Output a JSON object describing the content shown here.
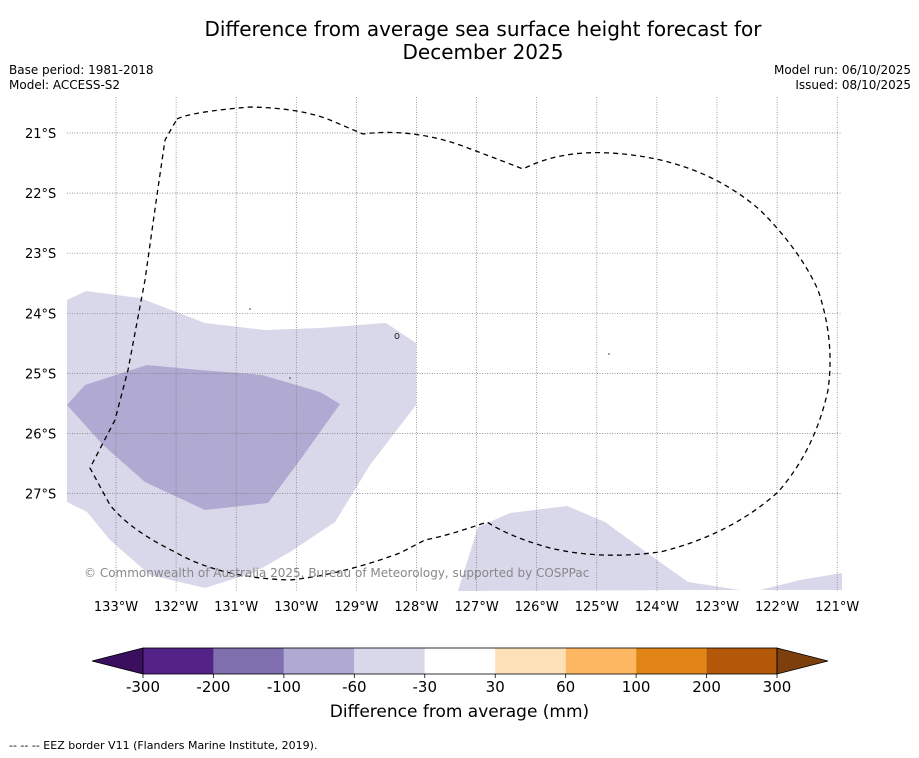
{
  "title_line1": "Difference from average sea surface height forecast for",
  "title_line2": "December 2025",
  "base_period": "Base period: 1981-2018",
  "model": "Model: ACCESS-S2",
  "model_run": "Model run: 06/10/2025",
  "issued": "Issued: 08/10/2025",
  "copyright": "© Commonwealth of Australia 2025, Bureau of Meteorology, supported by COSPPac",
  "footer": "--  --  -- EEZ border V11 (Flanders Marine Institute, 2019).",
  "map": {
    "lon_labels": [
      "133°W",
      "132°W",
      "131°W",
      "130°W",
      "129°W",
      "128°W",
      "127°W",
      "126°W",
      "125°W",
      "124°W",
      "123°W",
      "122°W",
      "121°W"
    ],
    "lat_labels": [
      "21°S",
      "22°S",
      "23°S",
      "24°S",
      "25°S",
      "26°S",
      "27°S"
    ],
    "anomaly_regions": [
      {
        "name": "minus-30-to-minus-60",
        "class": "-60 to -30 mm",
        "color": "#d8d8ea"
      },
      {
        "name": "minus-60-to-minus-100",
        "class": "-100 to -60 mm",
        "color": "#b0a9d1"
      }
    ]
  },
  "colorbar": {
    "title": "Difference from average (mm)",
    "tick_labels": [
      "-300",
      "-200",
      "-100",
      "-60",
      "-30",
      "30",
      "60",
      "100",
      "200",
      "300"
    ],
    "colors": [
      "#522287",
      "#7f6faf",
      "#b0a9d1",
      "#d8d8ea",
      "#ffffff",
      "#fee0b8",
      "#fdb762",
      "#e18517",
      "#b25808"
    ],
    "under_color": "#3a0f5f",
    "over_color": "#7d3f0c"
  }
}
